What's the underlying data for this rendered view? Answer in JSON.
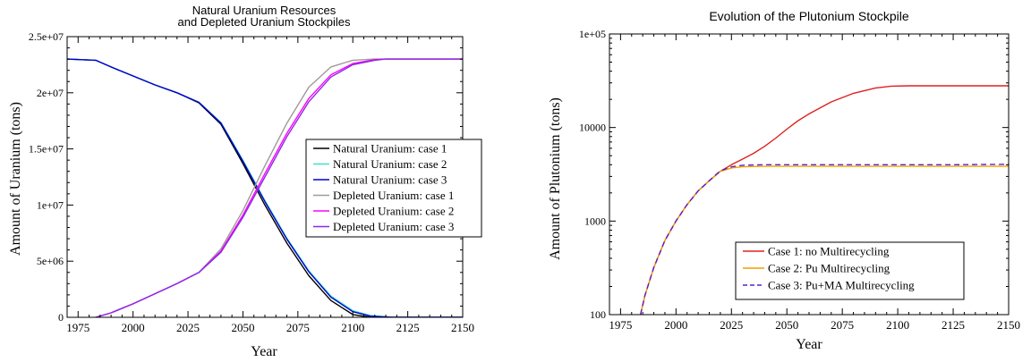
{
  "chart_data": [
    {
      "type": "line",
      "title": "Natural Uranium Resources",
      "subtitle": "and Depleted Uranium Stockpiles",
      "xlabel": "Year",
      "ylabel": "Amount of Uranium (tons)",
      "xlim": [
        1970,
        2150
      ],
      "ylim": [
        0,
        25000000
      ],
      "x_ticks": [
        1975,
        2000,
        2025,
        2050,
        2075,
        2100,
        2125,
        2150
      ],
      "y_ticks": [
        0,
        5000000,
        10000000,
        15000000,
        20000000,
        25000000
      ],
      "y_tick_labels": [
        "0",
        "5e+06",
        "1e+07",
        "1.5e+07",
        "2e+07",
        "2.5e+07"
      ],
      "legend_position": "right",
      "series": [
        {
          "name": "Natural Uranium: case 1",
          "color": "#000000",
          "x": [
            1970,
            1983,
            1990,
            2000,
            2010,
            2020,
            2030,
            2040,
            2050,
            2060,
            2070,
            2080,
            2090,
            2100,
            2108,
            2115,
            2150
          ],
          "y": [
            23000000,
            22900000,
            22300000,
            21500000,
            20700000,
            20000000,
            19100000,
            17200000,
            13700000,
            10000000,
            6600000,
            3700000,
            1500000,
            250000,
            0,
            0,
            0
          ]
        },
        {
          "name": "Natural Uranium: case 2",
          "color": "#40e0d0",
          "x": [
            1970,
            1983,
            1990,
            2000,
            2010,
            2020,
            2030,
            2040,
            2050,
            2060,
            2070,
            2080,
            2090,
            2100,
            2108,
            2118,
            2150
          ],
          "y": [
            23000000,
            22900000,
            22300000,
            21500000,
            20700000,
            20000000,
            19150000,
            17350000,
            14000000,
            10400000,
            7050000,
            4150000,
            1900000,
            600000,
            150000,
            0,
            0
          ]
        },
        {
          "name": "Natural Uranium: case 3",
          "color": "#0000cd",
          "x": [
            1970,
            1983,
            1990,
            2000,
            2010,
            2020,
            2030,
            2040,
            2050,
            2060,
            2070,
            2080,
            2090,
            2100,
            2108,
            2118,
            2150
          ],
          "y": [
            23000000,
            22900000,
            22300000,
            21500000,
            20700000,
            20000000,
            19150000,
            17300000,
            13900000,
            10300000,
            6950000,
            4050000,
            1800000,
            500000,
            100000,
            0,
            0
          ]
        },
        {
          "name": "Depleted Uranium: case 1",
          "color": "#a09a96",
          "x": [
            1983,
            1990,
            2000,
            2010,
            2020,
            2030,
            2040,
            2050,
            2060,
            2070,
            2080,
            2090,
            2100,
            2110,
            2150
          ],
          "y": [
            0,
            400000,
            1200000,
            2100000,
            3000000,
            4000000,
            6100000,
            9500000,
            13500000,
            17300000,
            20500000,
            22300000,
            22900000,
            23000000,
            23000000
          ]
        },
        {
          "name": "Depleted Uranium: case 2",
          "color": "#ff00ff",
          "x": [
            1983,
            1990,
            2000,
            2010,
            2020,
            2030,
            2040,
            2050,
            2060,
            2070,
            2080,
            2090,
            2100,
            2110,
            2115,
            2150
          ],
          "y": [
            0,
            400000,
            1200000,
            2100000,
            3000000,
            4000000,
            5900000,
            9100000,
            12800000,
            16400000,
            19500000,
            21600000,
            22600000,
            22950000,
            23000000,
            23000000
          ]
        },
        {
          "name": "Depleted Uranium: case 3",
          "color": "#8a2be2",
          "x": [
            1983,
            1990,
            2000,
            2010,
            2020,
            2030,
            2040,
            2050,
            2060,
            2070,
            2080,
            2090,
            2100,
            2110,
            2115,
            2150
          ],
          "y": [
            0,
            400000,
            1200000,
            2100000,
            3000000,
            4000000,
            5800000,
            8900000,
            12500000,
            16100000,
            19200000,
            21400000,
            22500000,
            22900000,
            23000000,
            23000000
          ]
        }
      ]
    },
    {
      "type": "line",
      "title": "Evolution of the Plutonium Stockpile",
      "xlabel": "Year",
      "ylabel": "Amount of Plutonium (tons)",
      "xlim": [
        1970,
        2150
      ],
      "ylim": [
        100,
        100000
      ],
      "log_y": true,
      "x_ticks": [
        1975,
        2000,
        2025,
        2050,
        2075,
        2100,
        2125,
        2150
      ],
      "y_ticks": [
        100,
        1000,
        10000,
        100000
      ],
      "y_tick_labels": [
        "100",
        "1000",
        "10000",
        "1e+05"
      ],
      "legend_position": "bottom-right",
      "series": [
        {
          "name": "Case 1: no Multirecycling",
          "color": "#e02020",
          "x": [
            1984,
            1986,
            1990,
            1995,
            2000,
            2005,
            2010,
            2015,
            2020,
            2025,
            2030,
            2035,
            2040,
            2045,
            2050,
            2055,
            2060,
            2070,
            2080,
            2090,
            2097,
            2105,
            2120,
            2150
          ],
          "y": [
            100,
            160,
            320,
            620,
            1000,
            1500,
            2100,
            2700,
            3400,
            4000,
            4600,
            5300,
            6300,
            7700,
            9600,
            11800,
            14000,
            18800,
            23200,
            26500,
            27700,
            27900,
            27900,
            27900
          ]
        },
        {
          "name": "Case 2: Pu Multirecycling",
          "color": "#f0a000",
          "x": [
            1984,
            1986,
            1990,
            1995,
            2000,
            2005,
            2010,
            2015,
            2020,
            2025,
            2030,
            2040,
            2050,
            2075,
            2100,
            2125,
            2150
          ],
          "y": [
            100,
            160,
            320,
            620,
            1000,
            1500,
            2100,
            2700,
            3400,
            3700,
            3800,
            3850,
            3850,
            3850,
            3850,
            3850,
            3850
          ]
        },
        {
          "name": "Case 3: Pu+MA Multirecycling",
          "color": "#5a20c8",
          "dashed": true,
          "x": [
            1984,
            1986,
            1990,
            1995,
            2000,
            2005,
            2010,
            2015,
            2020,
            2025,
            2030,
            2040,
            2050,
            2075,
            2100,
            2125,
            2150
          ],
          "y": [
            100,
            160,
            320,
            620,
            1000,
            1500,
            2100,
            2700,
            3450,
            3800,
            3950,
            4000,
            4000,
            4000,
            4000,
            4000,
            4050
          ]
        }
      ]
    }
  ]
}
